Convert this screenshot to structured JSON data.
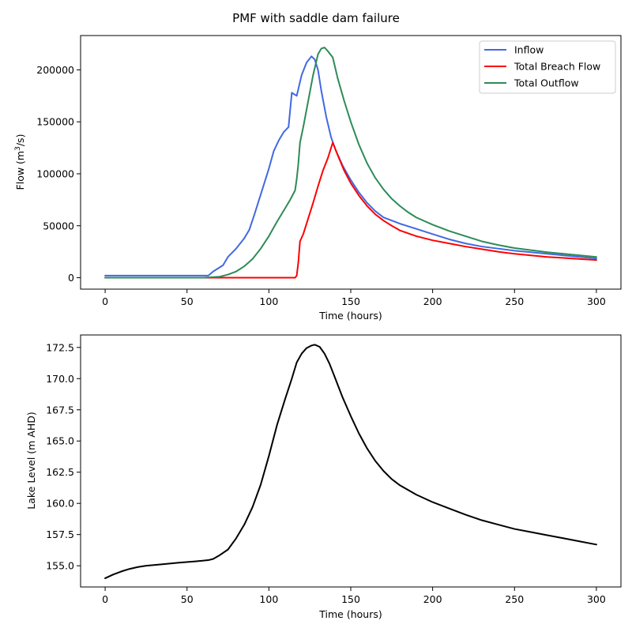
{
  "figure_title": "PMF with saddle dam failure",
  "chart_data": [
    {
      "type": "line",
      "title": "",
      "xlabel": "Time (hours)",
      "ylabel_prefix": "Flow (m",
      "ylabel_sup": "3",
      "ylabel_suffix": "/s)",
      "xlim": [
        -15,
        315
      ],
      "ylim": [
        -11000,
        233000
      ],
      "xticks": [
        0,
        50,
        100,
        150,
        200,
        250,
        300
      ],
      "yticks": [
        0,
        50000,
        100000,
        150000,
        200000
      ],
      "legend_position": "top-right",
      "series": [
        {
          "name": "Inflow",
          "color": "#4169e1",
          "points": [
            [
              0,
              2000
            ],
            [
              20,
              2000
            ],
            [
              40,
              2000
            ],
            [
              63,
              2000
            ],
            [
              66,
              6000
            ],
            [
              70,
              10000
            ],
            [
              72,
              12000
            ],
            [
              75,
              20000
            ],
            [
              80,
              28000
            ],
            [
              85,
              38000
            ],
            [
              88,
              46000
            ],
            [
              91,
              60000
            ],
            [
              95,
              80000
            ],
            [
              100,
              105000
            ],
            [
              103,
              122000
            ],
            [
              106,
              132000
            ],
            [
              109,
              140000
            ],
            [
              112,
              145000
            ],
            [
              114,
              178000
            ],
            [
              117,
              175000
            ],
            [
              120,
              195000
            ],
            [
              123,
              207000
            ],
            [
              126,
              213000
            ],
            [
              128,
              210000
            ],
            [
              130,
              200000
            ],
            [
              132,
              180000
            ],
            [
              135,
              155000
            ],
            [
              138,
              135000
            ],
            [
              141,
              122000
            ],
            [
              145,
              108000
            ],
            [
              150,
              94000
            ],
            [
              155,
              82000
            ],
            [
              160,
              72000
            ],
            [
              165,
              64000
            ],
            [
              170,
              58000
            ],
            [
              180,
              52000
            ],
            [
              190,
              47000
            ],
            [
              200,
              42000
            ],
            [
              210,
              37000
            ],
            [
              220,
              33000
            ],
            [
              230,
              30000
            ],
            [
              240,
              28000
            ],
            [
              250,
              26000
            ],
            [
              260,
              24500
            ],
            [
              270,
              23000
            ],
            [
              280,
              21500
            ],
            [
              290,
              20000
            ],
            [
              300,
              18500
            ]
          ]
        },
        {
          "name": "Total Breach Flow",
          "color": "#ff0000",
          "points": [
            [
              0,
              0
            ],
            [
              50,
              0
            ],
            [
              100,
              0
            ],
            [
              116,
              0
            ],
            [
              117,
              2000
            ],
            [
              118,
              15000
            ],
            [
              119,
              35000
            ],
            [
              121,
              42000
            ],
            [
              124,
              57000
            ],
            [
              127,
              72000
            ],
            [
              130,
              88000
            ],
            [
              133,
              103000
            ],
            [
              136,
              115000
            ],
            [
              139,
              130000
            ],
            [
              142,
              118000
            ],
            [
              146,
              103000
            ],
            [
              150,
              91000
            ],
            [
              155,
              79000
            ],
            [
              160,
              69000
            ],
            [
              165,
              61000
            ],
            [
              170,
              55000
            ],
            [
              175,
              50000
            ],
            [
              180,
              45500
            ],
            [
              190,
              40000
            ],
            [
              200,
              36000
            ],
            [
              210,
              33000
            ],
            [
              220,
              30000
            ],
            [
              230,
              27500
            ],
            [
              240,
              25000
            ],
            [
              250,
              23000
            ],
            [
              260,
              21500
            ],
            [
              270,
              20000
            ],
            [
              280,
              19000
            ],
            [
              290,
              18000
            ],
            [
              300,
              17000
            ]
          ]
        },
        {
          "name": "Total Outflow",
          "color": "#2e8b57",
          "points": [
            [
              0,
              0
            ],
            [
              20,
              0
            ],
            [
              40,
              0
            ],
            [
              60,
              0
            ],
            [
              65,
              500
            ],
            [
              70,
              1000
            ],
            [
              75,
              3000
            ],
            [
              80,
              6000
            ],
            [
              85,
              11000
            ],
            [
              90,
              18000
            ],
            [
              95,
              28000
            ],
            [
              100,
              40000
            ],
            [
              105,
              54000
            ],
            [
              110,
              67000
            ],
            [
              113,
              75000
            ],
            [
              116,
              84000
            ],
            [
              117,
              95000
            ],
            [
              118,
              110000
            ],
            [
              119,
              130000
            ],
            [
              121,
              145000
            ],
            [
              124,
              170000
            ],
            [
              127,
              195000
            ],
            [
              130,
              215000
            ],
            [
              132,
              220500
            ],
            [
              134,
              221500
            ],
            [
              136,
              218000
            ],
            [
              139,
              212000
            ],
            [
              142,
              192000
            ],
            [
              146,
              170000
            ],
            [
              150,
              150000
            ],
            [
              155,
              128000
            ],
            [
              160,
              110000
            ],
            [
              165,
              96000
            ],
            [
              170,
              85000
            ],
            [
              175,
              76000
            ],
            [
              180,
              69000
            ],
            [
              185,
              63000
            ],
            [
              190,
              58000
            ],
            [
              200,
              51000
            ],
            [
              210,
              45000
            ],
            [
              220,
              40000
            ],
            [
              230,
              35000
            ],
            [
              240,
              31500
            ],
            [
              250,
              28500
            ],
            [
              260,
              26500
            ],
            [
              270,
              24500
            ],
            [
              280,
              23000
            ],
            [
              290,
              21500
            ],
            [
              300,
              20000
            ]
          ]
        }
      ]
    },
    {
      "type": "line",
      "title": "",
      "xlabel": "Time (hours)",
      "ylabel": "Lake Level (m AHD)",
      "xlim": [
        -15,
        315
      ],
      "ylim": [
        153.3,
        173.5
      ],
      "xticks": [
        0,
        50,
        100,
        150,
        200,
        250,
        300
      ],
      "yticks": [
        155.0,
        157.5,
        160.0,
        162.5,
        165.0,
        167.5,
        170.0,
        172.5
      ],
      "ytick_labels": [
        "155.0",
        "157.5",
        "160.0",
        "162.5",
        "165.0",
        "167.5",
        "170.0",
        "172.5"
      ],
      "series": [
        {
          "color": "#000000",
          "points": [
            [
              0,
              154.0
            ],
            [
              5,
              154.3
            ],
            [
              10,
              154.55
            ],
            [
              15,
              154.75
            ],
            [
              20,
              154.9
            ],
            [
              25,
              155.0
            ],
            [
              35,
              155.12
            ],
            [
              45,
              155.25
            ],
            [
              55,
              155.35
            ],
            [
              63,
              155.45
            ],
            [
              66,
              155.55
            ],
            [
              70,
              155.85
            ],
            [
              75,
              156.3
            ],
            [
              80,
              157.2
            ],
            [
              85,
              158.3
            ],
            [
              90,
              159.7
            ],
            [
              95,
              161.5
            ],
            [
              100,
              163.8
            ],
            [
              105,
              166.3
            ],
            [
              110,
              168.4
            ],
            [
              114,
              170.0
            ],
            [
              117,
              171.3
            ],
            [
              120,
              172.0
            ],
            [
              123,
              172.45
            ],
            [
              126,
              172.65
            ],
            [
              128,
              172.72
            ],
            [
              131,
              172.55
            ],
            [
              134,
              172.0
            ],
            [
              137,
              171.2
            ],
            [
              140,
              170.2
            ],
            [
              145,
              168.5
            ],
            [
              150,
              167.0
            ],
            [
              155,
              165.6
            ],
            [
              160,
              164.4
            ],
            [
              165,
              163.4
            ],
            [
              170,
              162.6
            ],
            [
              175,
              161.95
            ],
            [
              180,
              161.45
            ],
            [
              190,
              160.7
            ],
            [
              200,
              160.1
            ],
            [
              210,
              159.6
            ],
            [
              220,
              159.1
            ],
            [
              230,
              158.65
            ],
            [
              240,
              158.3
            ],
            [
              250,
              157.95
            ],
            [
              260,
              157.7
            ],
            [
              270,
              157.45
            ],
            [
              280,
              157.2
            ],
            [
              290,
              156.95
            ],
            [
              300,
              156.7
            ]
          ]
        }
      ]
    }
  ]
}
